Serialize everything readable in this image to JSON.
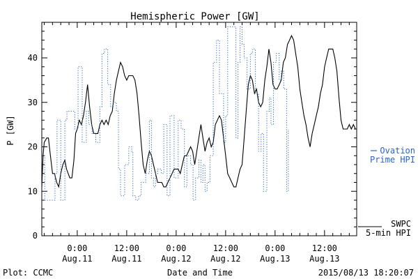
{
  "chart_data": {
    "type": "line",
    "title": "Hemispheric Power [GW]",
    "ylabel": "P [GW]",
    "xlabel": "Date and Time",
    "ylim": [
      0,
      48
    ],
    "yticks": [
      0,
      10,
      20,
      30,
      40
    ],
    "xlim_hours": [
      -8.6,
      51.2
    ],
    "xticks": [
      {
        "hour": 0,
        "time": "0:00",
        "date": "Aug.11"
      },
      {
        "hour": 12,
        "time": "12:00",
        "date": "Aug.11"
      },
      {
        "hour": 24,
        "time": "0:00",
        "date": "Aug.12"
      },
      {
        "hour": 36,
        "time": "12:00",
        "date": "Aug.12"
      },
      {
        "hour": 48,
        "time": "0:00",
        "date": "Aug.13"
      },
      {
        "hour": 60,
        "time": "12:00",
        "date": "Aug.13"
      }
    ],
    "legend": [
      {
        "label": "Ovation",
        "label2": "Prime HPI",
        "color": "#2a64c8"
      },
      {
        "label": "SWPC",
        "label2": "5-min HPI",
        "color": "#000000"
      }
    ],
    "series": [
      {
        "name": "SWPC 5-min HPI",
        "style": "solid",
        "color": "#000000",
        "points": [
          [
            -8.6,
            11
          ],
          [
            -8.3,
            18
          ],
          [
            -8,
            21
          ],
          [
            -7.4,
            22
          ],
          [
            -7,
            22
          ],
          [
            -6.5,
            18
          ],
          [
            -6,
            14
          ],
          [
            -5.5,
            14
          ],
          [
            -5,
            12
          ],
          [
            -4.5,
            11
          ],
          [
            -4,
            14
          ],
          [
            -3.5,
            16
          ],
          [
            -3,
            17
          ],
          [
            -2.6,
            15
          ],
          [
            -2.2,
            14
          ],
          [
            -1.8,
            13
          ],
          [
            -1.3,
            13
          ],
          [
            -0.8,
            17
          ],
          [
            -0.4,
            23
          ],
          [
            0,
            24
          ],
          [
            0.5,
            26
          ],
          [
            1,
            25
          ],
          [
            1.5,
            27
          ],
          [
            2,
            30
          ],
          [
            2.5,
            34
          ],
          [
            3,
            29
          ],
          [
            3.5,
            25
          ],
          [
            4,
            23
          ],
          [
            4.5,
            23
          ],
          [
            5,
            23
          ],
          [
            5.5,
            25
          ],
          [
            6,
            26
          ],
          [
            6.5,
            25
          ],
          [
            7,
            26
          ],
          [
            7.5,
            25
          ],
          [
            8,
            27
          ],
          [
            8.5,
            28
          ],
          [
            9,
            32
          ],
          [
            9.5,
            35
          ],
          [
            10,
            37
          ],
          [
            10.5,
            39
          ],
          [
            11,
            38
          ],
          [
            11.5,
            36
          ],
          [
            12,
            35
          ],
          [
            12.5,
            36
          ],
          [
            13,
            36
          ],
          [
            13.5,
            36
          ],
          [
            14,
            35
          ],
          [
            14.5,
            32
          ],
          [
            15,
            27
          ],
          [
            15.5,
            21
          ],
          [
            16,
            16
          ],
          [
            16.5,
            14
          ],
          [
            17,
            17
          ],
          [
            17.5,
            19
          ],
          [
            18,
            18
          ],
          [
            18.5,
            16
          ],
          [
            19,
            14
          ],
          [
            19.5,
            12
          ],
          [
            20,
            12
          ],
          [
            20.5,
            12
          ],
          [
            21,
            11
          ],
          [
            21.5,
            11
          ],
          [
            22,
            12
          ],
          [
            22.5,
            13
          ],
          [
            23,
            14
          ],
          [
            23.5,
            15
          ],
          [
            24,
            15
          ],
          [
            24.5,
            15
          ],
          [
            25,
            14
          ],
          [
            25.5,
            16
          ],
          [
            26,
            18
          ],
          [
            26.5,
            18
          ],
          [
            27,
            19
          ],
          [
            27.5,
            20
          ],
          [
            28,
            19
          ],
          [
            28.5,
            16
          ],
          [
            29,
            19
          ],
          [
            29.5,
            22
          ],
          [
            30,
            25
          ],
          [
            30.5,
            22
          ],
          [
            31,
            19
          ],
          [
            31.5,
            21
          ],
          [
            32,
            22
          ],
          [
            32.5,
            20
          ],
          [
            33,
            21
          ],
          [
            33.5,
            25
          ],
          [
            34,
            26
          ],
          [
            34.5,
            27
          ],
          [
            35,
            26
          ],
          [
            35.5,
            22
          ],
          [
            36,
            18
          ],
          [
            36.5,
            14
          ],
          [
            37,
            13
          ],
          [
            37.5,
            12
          ],
          [
            38,
            11
          ],
          [
            38.5,
            11
          ],
          [
            39,
            13
          ],
          [
            39.5,
            15
          ],
          [
            40,
            16
          ],
          [
            40.5,
            22
          ],
          [
            41,
            28
          ],
          [
            41.5,
            34
          ],
          [
            42,
            36
          ],
          [
            42.5,
            35
          ],
          [
            43,
            32
          ],
          [
            43.5,
            33
          ],
          [
            44,
            30
          ],
          [
            44.5,
            29
          ],
          [
            45,
            30
          ],
          [
            45.5,
            35
          ],
          [
            46,
            38
          ],
          [
            46.5,
            42
          ],
          [
            47,
            39
          ],
          [
            47.5,
            34
          ],
          [
            48,
            33
          ],
          [
            48.5,
            33
          ],
          [
            49,
            34
          ],
          [
            49.5,
            35
          ],
          [
            50,
            39
          ],
          [
            50.5,
            40
          ],
          [
            51,
            43
          ],
          [
            51.5,
            44
          ],
          [
            52,
            45
          ],
          [
            52.5,
            44
          ],
          [
            53,
            41
          ],
          [
            53.5,
            38
          ],
          [
            54,
            33
          ],
          [
            54.5,
            30
          ],
          [
            55,
            27
          ],
          [
            55.5,
            25
          ],
          [
            56,
            22
          ],
          [
            56.5,
            20
          ],
          [
            57,
            23
          ],
          [
            57.5,
            25
          ],
          [
            58,
            27
          ],
          [
            58.5,
            29
          ],
          [
            59,
            32
          ],
          [
            59.5,
            34
          ],
          [
            60,
            38
          ],
          [
            60.5,
            40
          ],
          [
            61,
            42
          ],
          [
            61.5,
            42
          ],
          [
            62,
            42
          ],
          [
            62.5,
            40
          ],
          [
            63,
            37
          ],
          [
            63.5,
            31
          ],
          [
            64,
            26
          ],
          [
            64.5,
            24
          ],
          [
            65,
            24
          ],
          [
            65.5,
            24
          ],
          [
            66,
            25
          ],
          [
            66.5,
            24
          ],
          [
            67,
            25
          ],
          [
            67.5,
            24
          ]
        ]
      },
      {
        "name": "Ovation Prime HPI",
        "style": "dotted-step",
        "color": "#2a64c8",
        "points": [
          [
            -8.6,
            18
          ],
          [
            -7.9,
            8
          ],
          [
            -6.5,
            8
          ],
          [
            -5.4,
            14
          ],
          [
            -4.9,
            26
          ],
          [
            -4,
            8
          ],
          [
            -3,
            26
          ],
          [
            -2.5,
            28
          ],
          [
            -1.5,
            28
          ],
          [
            -0.6,
            24
          ],
          [
            0.2,
            38
          ],
          [
            1,
            38
          ],
          [
            1.2,
            21
          ],
          [
            2.2,
            28
          ],
          [
            2.8,
            25
          ],
          [
            3.6,
            23
          ],
          [
            4.5,
            21
          ],
          [
            5.5,
            29
          ],
          [
            6,
            41
          ],
          [
            6.6,
            42
          ],
          [
            7.4,
            34
          ],
          [
            8.1,
            29
          ],
          [
            8.7,
            30
          ],
          [
            9.5,
            28
          ],
          [
            10,
            15
          ],
          [
            10.5,
            9
          ],
          [
            11.5,
            16
          ],
          [
            12.5,
            20
          ],
          [
            13.2,
            19
          ],
          [
            13.5,
            9
          ],
          [
            14.2,
            8
          ],
          [
            14.9,
            9
          ],
          [
            15.5,
            12
          ],
          [
            16,
            12
          ],
          [
            16.6,
            14
          ],
          [
            17.5,
            26
          ],
          [
            18,
            13
          ],
          [
            18.5,
            11
          ],
          [
            19,
            14
          ],
          [
            19.5,
            15
          ],
          [
            20.4,
            14
          ],
          [
            21,
            25
          ],
          [
            21.8,
            9
          ],
          [
            22.5,
            27
          ],
          [
            23.5,
            13
          ],
          [
            24.5,
            26
          ],
          [
            25.2,
            24
          ],
          [
            26,
            11
          ],
          [
            26.6,
            18
          ],
          [
            27.5,
            16
          ],
          [
            28.1,
            8
          ],
          [
            28.7,
            13
          ],
          [
            29.5,
            17
          ],
          [
            30,
            12
          ],
          [
            30.5,
            16
          ],
          [
            31,
            10
          ],
          [
            31.5,
            12
          ],
          [
            32.2,
            18
          ],
          [
            33,
            39
          ],
          [
            33.8,
            44
          ],
          [
            34.5,
            32
          ],
          [
            35.5,
            21
          ],
          [
            36,
            27
          ],
          [
            36.5,
            47
          ],
          [
            38,
            47
          ],
          [
            38.5,
            22
          ],
          [
            39,
            39
          ],
          [
            39.5,
            47
          ],
          [
            40,
            43
          ],
          [
            40.5,
            40
          ],
          [
            41.2,
            33
          ],
          [
            42,
            41
          ],
          [
            42.5,
            42
          ],
          [
            43.2,
            32
          ],
          [
            44,
            19
          ],
          [
            44.6,
            23
          ],
          [
            45.2,
            10
          ],
          [
            46,
            28
          ],
          [
            46.6,
            31
          ],
          [
            47,
            25
          ],
          [
            47.6,
            39
          ],
          [
            48.3,
            41
          ],
          [
            49,
            35
          ],
          [
            49.5,
            37
          ],
          [
            50.1,
            33
          ],
          [
            50.8,
            10
          ],
          [
            51.2,
            24
          ]
        ]
      }
    ]
  },
  "footer": {
    "plot_credit": "Plot: CCMC",
    "timestamp": "2015/08/13 18:20:07"
  }
}
